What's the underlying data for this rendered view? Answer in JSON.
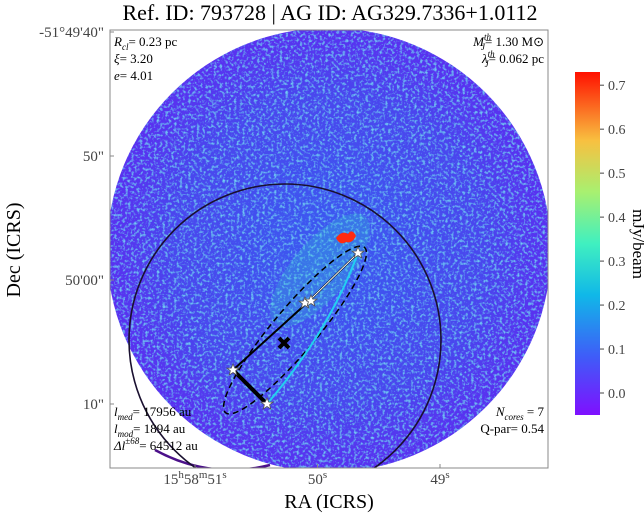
{
  "chart_data": {
    "type": "image",
    "title": "Ref. ID: 793728 | AG ID: AG329.7336+1.0112",
    "xlabel": "RA (ICRS)",
    "ylabel": "Dec (ICRS)",
    "xticks": [
      "15h58m51s",
      "50s",
      "49s"
    ],
    "yticks": [
      "-51°49'40\"",
      "50\"",
      "50'00\"",
      "10\""
    ],
    "colorbar": {
      "label": "mJy/beam",
      "clim": [
        -0.05,
        0.73
      ],
      "ticks": [
        {
          "value": 0,
          "label": "0.0"
        },
        0.1,
        0.2,
        0.3,
        0.4,
        0.5,
        0.6,
        0.7
      ]
    },
    "annotations": {
      "top_left": [
        {
          "sym": "R",
          "sub": "cl",
          "rest": "= 0.23 pc"
        },
        {
          "sym": "ξ",
          "rest": "= 3.20"
        },
        {
          "sym": "e",
          "rest": "= 4.01"
        }
      ],
      "top_right": [
        {
          "sym": "M",
          "sub": "J",
          "sup": "th",
          "rest": "= 1.30 M⊙"
        },
        {
          "sym": "λ",
          "sub": "J",
          "sup": "th",
          "rest": "= 0.062 pc"
        }
      ],
      "bottom_left": [
        {
          "sym": "l",
          "sub": "med",
          "rest": "= 17956 au"
        },
        {
          "sym": "l",
          "sub": "mod",
          "rest": "= 1894 au"
        },
        {
          "sym": "Δl",
          "sup": "±68",
          "rest": "= 64512 au"
        }
      ],
      "bottom_right": [
        {
          "sym": "N",
          "sub": "cores",
          "rest": " = 7"
        },
        {
          "sym": "Q-par",
          "rest": "= 0.54"
        }
      ]
    }
  }
}
